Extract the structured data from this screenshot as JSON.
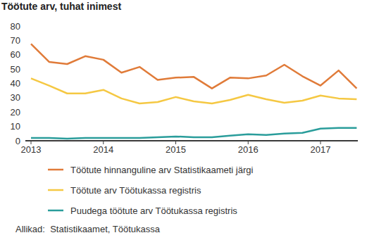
{
  "chart_data": {
    "type": "line",
    "title": "Töötute arv, tuhat inimest",
    "source": "Allikad:  Statistikaamet, Töötukassa",
    "categories": [
      "2013",
      null,
      null,
      null,
      "2014",
      null,
      null,
      null,
      "2015",
      null,
      null,
      null,
      "2016",
      null,
      null,
      null,
      "2017",
      null,
      null
    ],
    "series": [
      {
        "name": "Töötute hinnanguline arv Statistikaameti järgi",
        "color": "#e07b39",
        "values": [
          67.5,
          55,
          53.5,
          59,
          56.5,
          47.5,
          51.5,
          42.5,
          44,
          44.5,
          36.5,
          44,
          43.5,
          45.5,
          53,
          45,
          38.5,
          49,
          36.5
        ]
      },
      {
        "name": "Töötute arv Töötukassa registris",
        "color": "#f5c843",
        "values": [
          43.5,
          38.5,
          33,
          33,
          35.5,
          29.5,
          26,
          27,
          30.5,
          27.5,
          26,
          28.5,
          32,
          29,
          26.5,
          28,
          31.5,
          29.5,
          29
        ]
      },
      {
        "name": "Puudega töötute arv Töötukassa registris",
        "color": "#2a9d9b",
        "values": [
          2,
          2,
          1.5,
          2,
          2,
          2,
          2,
          2.5,
          3,
          2.5,
          2.5,
          3.5,
          4.5,
          4,
          5,
          5.5,
          8.5,
          9,
          9
        ]
      }
    ],
    "ylim": [
      0,
      80
    ],
    "yticks": [
      0,
      10,
      20,
      30,
      40,
      50,
      60,
      70,
      80
    ],
    "grid": false,
    "legend": "bottom"
  }
}
